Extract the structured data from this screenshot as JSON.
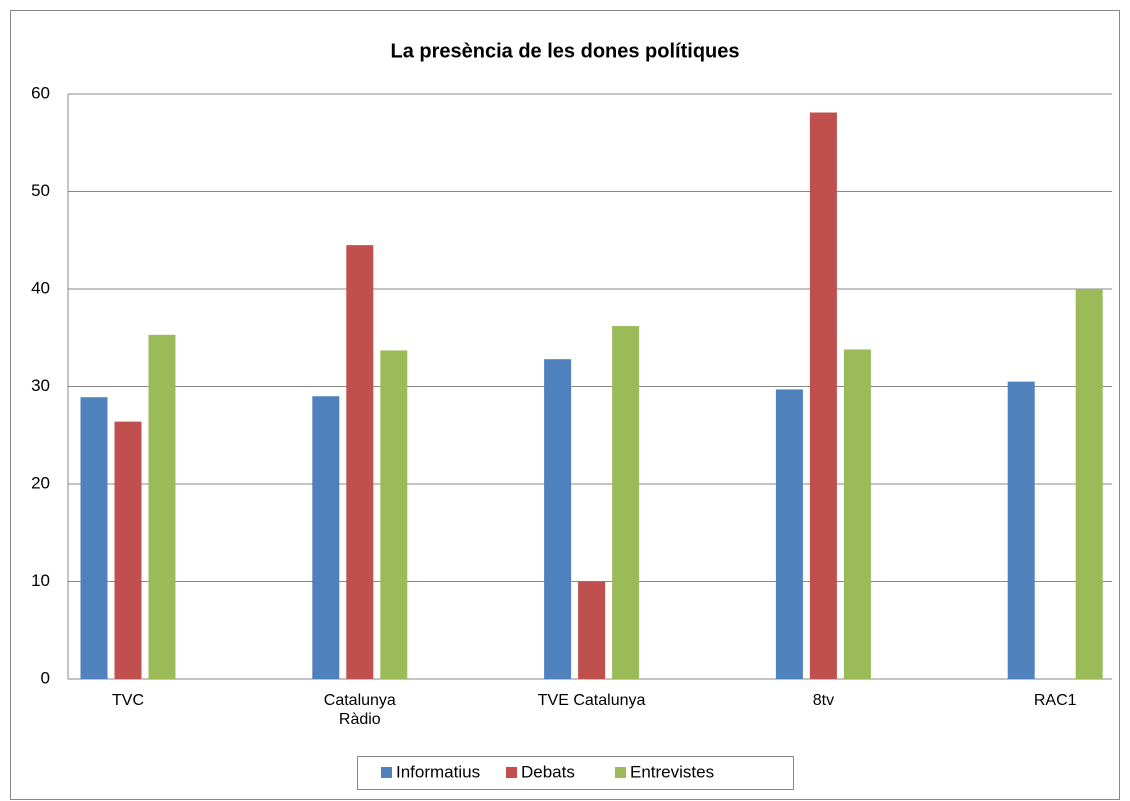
{
  "chart_data": {
    "type": "bar",
    "title": "La presència de les dones polítiques",
    "categories": [
      "TVC",
      "Catalunya Ràdio",
      "TVE Catalunya",
      "8tv",
      "RAC1"
    ],
    "series": [
      {
        "name": "Informatius",
        "color": "#4f81bd",
        "values": [
          28.9,
          29.0,
          32.8,
          29.7,
          30.5
        ]
      },
      {
        "name": "Debats",
        "color": "#c0504d",
        "values": [
          26.4,
          44.5,
          10,
          58.1,
          null
        ]
      },
      {
        "name": "Entrevistes",
        "color": "#9bbb59",
        "values": [
          35.3,
          33.7,
          36.2,
          33.8,
          40.0
        ]
      }
    ],
    "ylim": [
      0,
      60
    ],
    "yticks": [
      0,
      10,
      20,
      30,
      40,
      50,
      60
    ],
    "grid": true,
    "legend": "bottom"
  }
}
